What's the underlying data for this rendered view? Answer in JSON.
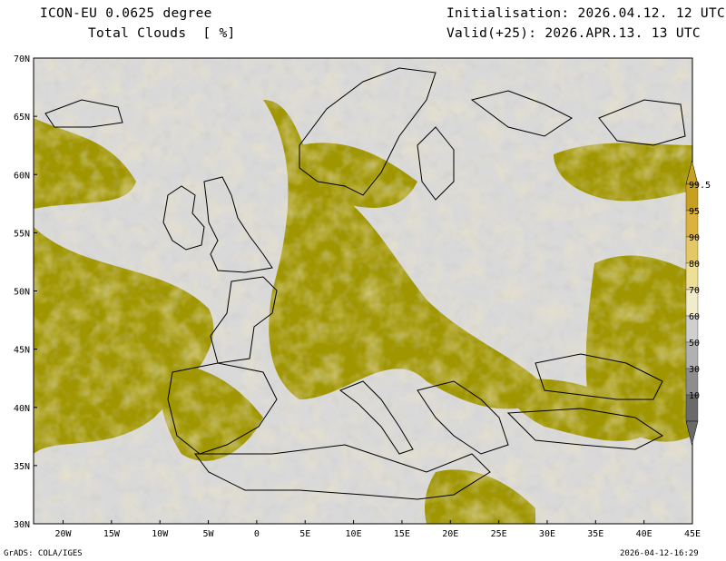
{
  "header": {
    "model": "ICON-EU 0.0625 degree",
    "variable": "Total Clouds  [ %]",
    "init": "Initialisation: 2026.04.12. 12 UTC",
    "valid": "Valid(+25): 2026.APR.13. 13 UTC"
  },
  "footer": {
    "credit": "GrADS: COLA/IGES",
    "timestamp": "2026-04-12-16:29"
  },
  "axes": {
    "lat_labels": [
      "70N",
      "65N",
      "60N",
      "55N",
      "50N",
      "45N",
      "40N",
      "35N",
      "30N"
    ],
    "lon_labels": [
      "20W",
      "15W",
      "10W",
      "5W",
      "0",
      "5E",
      "10E",
      "15E",
      "20E",
      "25E",
      "30E",
      "35E",
      "40E",
      "45E"
    ]
  },
  "legend": {
    "labels": [
      "99.5",
      "95",
      "90",
      "80",
      "70",
      "60",
      "50",
      "30",
      "10"
    ],
    "colors": [
      "#c8a021",
      "#dcb23d",
      "#e6c766",
      "#eedf98",
      "#f1eccb",
      "#cfcfcf",
      "#b1b1b1",
      "#8d8d8d",
      "#6a6a6a"
    ]
  },
  "palette": {
    "dense_cloud": "#a09600",
    "clear": "#d9d9d9",
    "coast": "#000000"
  }
}
